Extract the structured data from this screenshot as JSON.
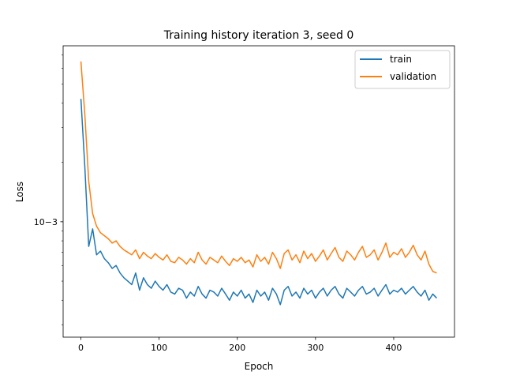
{
  "chart_data": {
    "type": "line",
    "title": "Training history iteration 3, seed 0",
    "xlabel": "Epoch",
    "ylabel": "Loss",
    "xlim": [
      -22.75,
      477.75
    ],
    "x_ticks": [
      0,
      100,
      200,
      300,
      400
    ],
    "y_scale": "log",
    "ylim": [
      0.00026,
      0.0078
    ],
    "y_ticks": [
      0.001
    ],
    "y_tick_labels": [
      "10−3"
    ],
    "grid": false,
    "legend_placement": "top-right",
    "colors": {
      "train": "#1f77b4",
      "validation": "#ff7f0e"
    },
    "series": [
      {
        "name": "train",
        "x_start": 0,
        "x_step": 5,
        "values": [
          0.0042,
          0.0019,
          0.00075,
          0.00092,
          0.00068,
          0.00071,
          0.00065,
          0.00062,
          0.00058,
          0.0006,
          0.00055,
          0.00052,
          0.0005,
          0.00048,
          0.00055,
          0.00045,
          0.00052,
          0.00048,
          0.00046,
          0.0005,
          0.00047,
          0.00045,
          0.00048,
          0.00044,
          0.00043,
          0.00046,
          0.00045,
          0.00041,
          0.00044,
          0.00042,
          0.00047,
          0.00043,
          0.00041,
          0.00045,
          0.00044,
          0.00042,
          0.00046,
          0.00043,
          0.0004,
          0.00044,
          0.00042,
          0.00045,
          0.00041,
          0.00043,
          0.00039,
          0.00045,
          0.00042,
          0.00044,
          0.0004,
          0.00046,
          0.00043,
          0.00038,
          0.00045,
          0.00047,
          0.00042,
          0.00044,
          0.00041,
          0.00046,
          0.00043,
          0.00045,
          0.00041,
          0.00044,
          0.00046,
          0.00042,
          0.00045,
          0.00047,
          0.00043,
          0.00041,
          0.00046,
          0.00044,
          0.00042,
          0.00045,
          0.00047,
          0.00043,
          0.00044,
          0.00046,
          0.00042,
          0.00045,
          0.00048,
          0.00043,
          0.00045,
          0.00044,
          0.00046,
          0.00043,
          0.00045,
          0.00047,
          0.00044,
          0.00042,
          0.00045,
          0.0004,
          0.00043,
          0.00041
        ]
      },
      {
        "name": "validation",
        "x_start": 0,
        "x_step": 5,
        "values": [
          0.0065,
          0.0035,
          0.0016,
          0.0011,
          0.00095,
          0.00088,
          0.00085,
          0.00082,
          0.00078,
          0.0008,
          0.00075,
          0.00072,
          0.0007,
          0.00068,
          0.00072,
          0.00065,
          0.0007,
          0.00067,
          0.00065,
          0.00069,
          0.00066,
          0.00064,
          0.00068,
          0.00063,
          0.00062,
          0.00066,
          0.00064,
          0.00061,
          0.00065,
          0.00062,
          0.0007,
          0.00064,
          0.00061,
          0.00066,
          0.00064,
          0.00062,
          0.00067,
          0.00063,
          0.0006,
          0.00065,
          0.00063,
          0.00066,
          0.00062,
          0.00064,
          0.00059,
          0.00068,
          0.00063,
          0.00066,
          0.00061,
          0.0007,
          0.00065,
          0.00058,
          0.00069,
          0.00072,
          0.00064,
          0.00068,
          0.00062,
          0.00071,
          0.00065,
          0.00069,
          0.00063,
          0.00067,
          0.00072,
          0.00064,
          0.00069,
          0.00074,
          0.00066,
          0.00063,
          0.00071,
          0.00068,
          0.00064,
          0.0007,
          0.00075,
          0.00066,
          0.00068,
          0.00072,
          0.00064,
          0.0007,
          0.00078,
          0.00066,
          0.0007,
          0.00068,
          0.00073,
          0.00066,
          0.0007,
          0.00076,
          0.00068,
          0.00064,
          0.00071,
          0.00061,
          0.00056,
          0.00055
        ]
      }
    ]
  }
}
